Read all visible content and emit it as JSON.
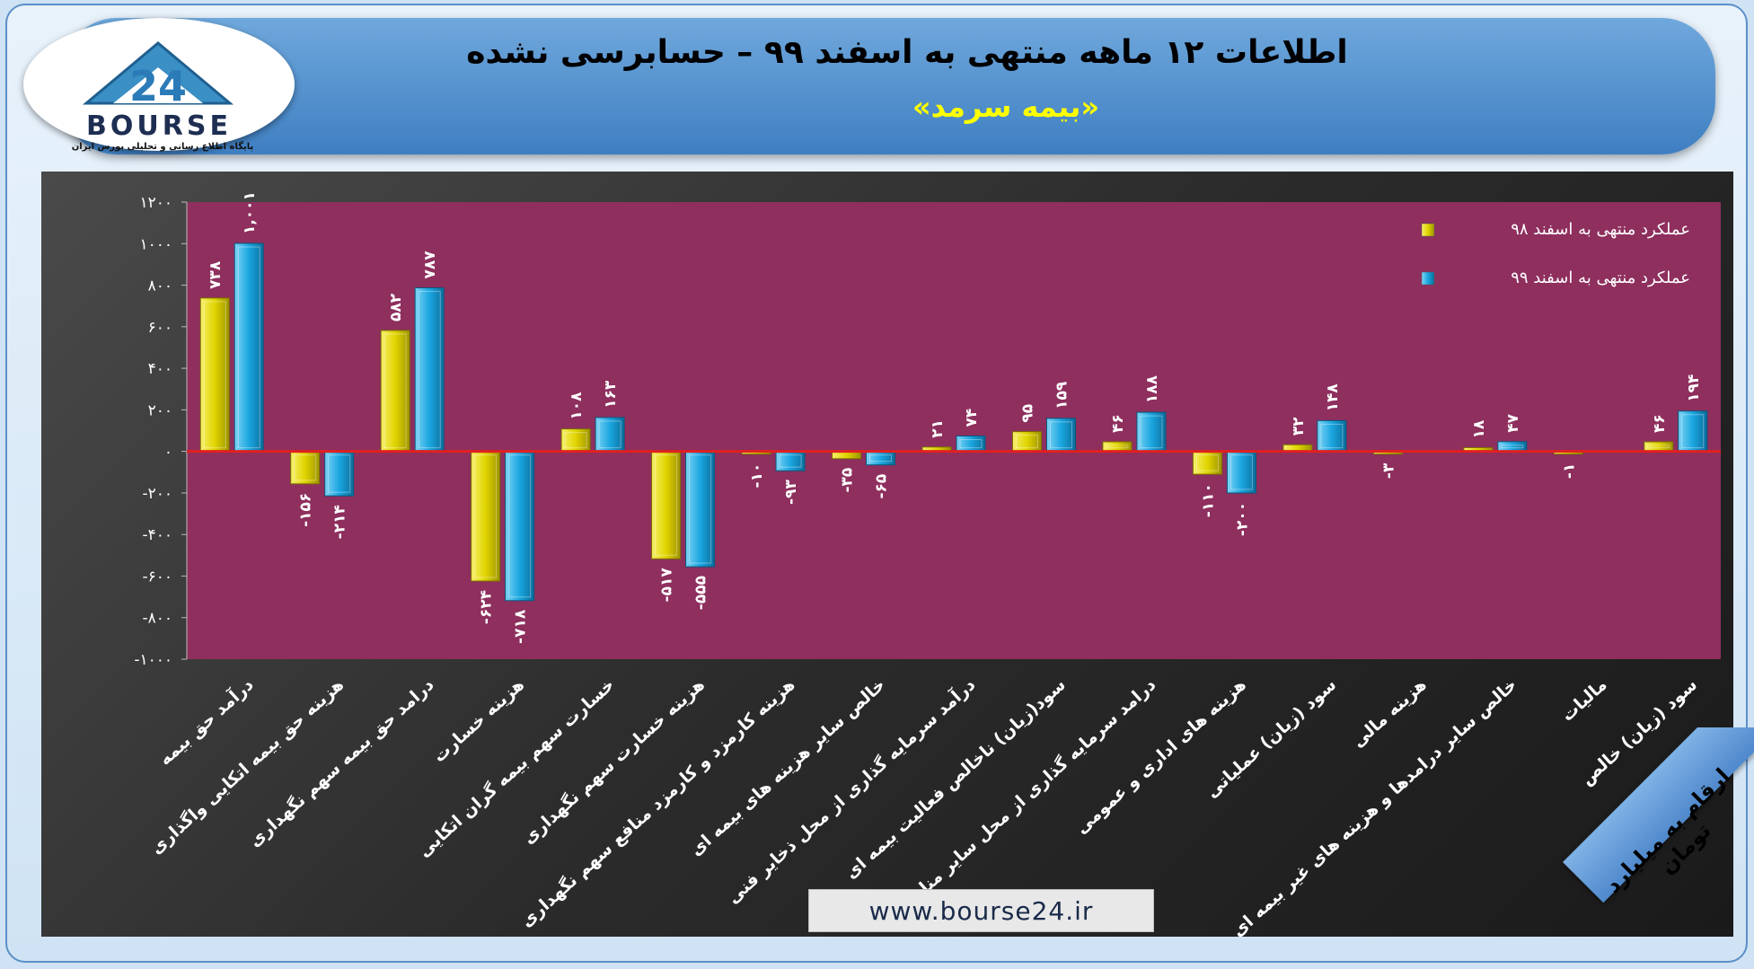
{
  "header": {
    "title": "اطلاعات ۱۲ ماهه منتهی به اسفند ۹۹ – حسابرسی نشده",
    "subtitle": "«بیمه سرمد»"
  },
  "logo": {
    "text": "BOURSE",
    "number": "24",
    "tagline": "پایگاه اطلاع رسانی و تحلیلی بورس ایران"
  },
  "footer": {
    "website": "www.bourse24.ir",
    "units_note": "ارقام به میلیارد تومان"
  },
  "colors": {
    "plot_background": "#8e2f5e",
    "zero_line": "#e02020",
    "series_98": "#e0d400",
    "series_99": "#1aa6e0"
  },
  "chart_data": {
    "type": "bar",
    "title": "",
    "xlabel": "",
    "ylabel": "",
    "ylim": [
      -1000,
      1200
    ],
    "yticks": [
      {
        "value": 1200,
        "label": "۱۲۰۰"
      },
      {
        "value": 1000,
        "label": "۱۰۰۰"
      },
      {
        "value": 800,
        "label": "۸۰۰"
      },
      {
        "value": 600,
        "label": "۶۰۰"
      },
      {
        "value": 400,
        "label": "۴۰۰"
      },
      {
        "value": 200,
        "label": "۲۰۰"
      },
      {
        "value": 0,
        "label": "۰"
      },
      {
        "value": -200,
        "label": "-۲۰۰"
      },
      {
        "value": -400,
        "label": "-۴۰۰"
      },
      {
        "value": -600,
        "label": "-۶۰۰"
      },
      {
        "value": -800,
        "label": "-۸۰۰"
      },
      {
        "value": -1000,
        "label": "-۱۰۰۰"
      }
    ],
    "grid": false,
    "legend_position": "top-right",
    "categories": [
      "درآمد حق بیمه",
      "هزینه حق بیمه اتکایی واگذاری",
      "درامد حق بیمه سهم نگهداری",
      "هزینه خسارت",
      "خسارت سهم بیمه گران اتکایی",
      "هزینه خسارت سهم نگهداری",
      "هزینه کارمزد و کارمزد منافع سهم نگهداری",
      "خالص سایر هزینه های بیمه ای",
      "درآمد سرمایه گذاری از محل ذخایر فنی",
      "سود(زیان) ناخالص فعالیت بیمه ای",
      "درامد سرمایه گذاری از محل سایر منابع",
      "هزینه های اداری و عمومی",
      "سود (زیان) عملیاتی",
      "هزینه مالی",
      "خالص سایر درامدها و هزینه های غیر بیمه ای",
      "مالیات",
      "سود (زیان) خالص"
    ],
    "series": [
      {
        "name": "عملکرد منتهی به اسفند ۹۸",
        "values": [
          738,
          -156,
          582,
          -624,
          108,
          -517,
          -10,
          -35,
          21,
          95,
          46,
          -110,
          32,
          -3,
          18,
          -1,
          46
        ],
        "labels": [
          "۷۳۸",
          "-۱۵۶",
          "۵۸۲",
          "-۶۲۴",
          "۱۰۸",
          "-۵۱۷",
          "-۱۰",
          "-۳۵",
          "۲۱",
          "۹۵",
          "۴۶",
          "-۱۱۰",
          "۳۲",
          "-۳",
          "۱۸",
          "-۱",
          "۴۶"
        ]
      },
      {
        "name": "عملکرد منتهی به اسفند ۹۹",
        "values": [
          1001,
          -214,
          787,
          -718,
          163,
          -555,
          -93,
          -65,
          74,
          159,
          188,
          -200,
          148,
          null,
          47,
          null,
          194
        ],
        "labels": [
          "۱,۰۰۱",
          "-۲۱۴",
          "۷۸۷",
          "-۷۱۸",
          "۱۶۳",
          "-۵۵۵",
          "-۹۳",
          "-۶۵",
          "۷۴",
          "۱۵۹",
          "۱۸۸",
          "-۲۰۰",
          "۱۴۸",
          "",
          "۴۷",
          "",
          "۱۹۴"
        ]
      }
    ]
  }
}
